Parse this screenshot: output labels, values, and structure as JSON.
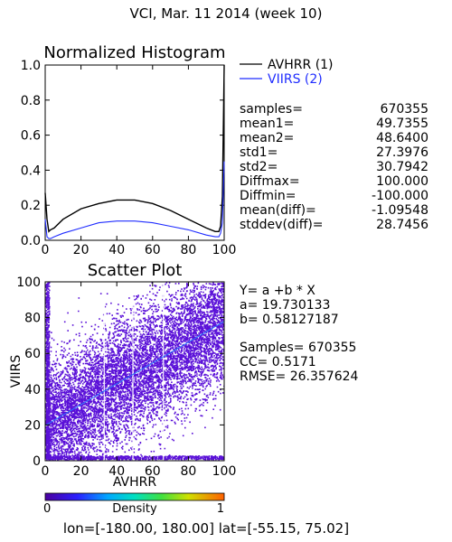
{
  "title": "VCI,  Mar. 11 2014 (week 10)",
  "histogram": {
    "title": "Normalized Histogram",
    "legend": [
      {
        "label": "AVHRR (1)",
        "color": "#000000"
      },
      {
        "label": "VIIRS (2)",
        "color": "#1f2cff"
      }
    ],
    "x_ticks": [
      "0",
      "20",
      "40",
      "60",
      "80",
      "100"
    ],
    "y_ticks": [
      "0.0",
      "0.2",
      "0.4",
      "0.6",
      "0.8",
      "1.0"
    ]
  },
  "stats": [
    {
      "label": "samples=",
      "value": "670355"
    },
    {
      "label": "mean1=",
      "value": "49.7355"
    },
    {
      "label": "mean2=",
      "value": "48.6400"
    },
    {
      "label": "std1=",
      "value": "27.3976"
    },
    {
      "label": "std2=",
      "value": "30.7942"
    },
    {
      "label": "Diffmax=",
      "value": "100.000"
    },
    {
      "label": "Diffmin=",
      "value": "-100.000"
    },
    {
      "label": "mean(diff)=",
      "value": "-1.09548"
    },
    {
      "label": "stddev(diff)=",
      "value": "28.7456"
    }
  ],
  "scatter": {
    "title": "Scatter Plot",
    "xlabel": "AVHRR",
    "ylabel": "VIIRS",
    "x_ticks": [
      "0",
      "20",
      "40",
      "60",
      "80",
      "100"
    ],
    "y_ticks": [
      "0",
      "20",
      "40",
      "60",
      "80",
      "100"
    ]
  },
  "regression": {
    "equation": "Y= a +b * X",
    "a": "a= 19.730133",
    "b": "b= 0.58127187",
    "samples": "Samples= 670355",
    "cc": "CC=  0.5171",
    "rmse": "RMSE= 26.357624"
  },
  "colorbar": {
    "min": "0",
    "label": "Density",
    "max": "1"
  },
  "footer": "lon=[-180.00, 180.00] lat=[-55.15, 75.02]",
  "colors": {
    "avhrr": "#000000",
    "viirs": "#1f2cff",
    "scatter": "#5a10d8",
    "fit_line": "#2a7cff"
  },
  "chart_data": [
    {
      "type": "line",
      "title": "Normalized Histogram",
      "xlabel": "",
      "ylabel": "",
      "xlim": [
        0,
        100
      ],
      "ylim": [
        0,
        1.0
      ],
      "series": [
        {
          "name": "AVHRR (1)",
          "x": [
            0,
            1,
            2,
            3,
            5,
            10,
            20,
            30,
            40,
            50,
            60,
            70,
            80,
            90,
            95,
            97,
            98,
            99,
            100
          ],
          "y": [
            0.27,
            0.12,
            0.05,
            0.06,
            0.07,
            0.12,
            0.18,
            0.21,
            0.23,
            0.23,
            0.21,
            0.17,
            0.12,
            0.07,
            0.05,
            0.05,
            0.08,
            0.25,
            1.0
          ]
        },
        {
          "name": "VIIRS (2)",
          "x": [
            0,
            1,
            2,
            3,
            5,
            10,
            20,
            30,
            40,
            50,
            60,
            70,
            80,
            90,
            95,
            97,
            98,
            99,
            100
          ],
          "y": [
            0.12,
            0.02,
            0.01,
            0.01,
            0.02,
            0.04,
            0.07,
            0.1,
            0.11,
            0.11,
            0.1,
            0.08,
            0.06,
            0.03,
            0.02,
            0.02,
            0.04,
            0.1,
            0.45
          ]
        }
      ],
      "grid": false
    },
    {
      "type": "scatter",
      "title": "Scatter Plot",
      "xlabel": "AVHRR",
      "ylabel": "VIIRS",
      "xlim": [
        0,
        100
      ],
      "ylim": [
        0,
        100
      ],
      "regression": {
        "a": 19.730133,
        "b": 0.58127187
      },
      "grid": false
    }
  ]
}
